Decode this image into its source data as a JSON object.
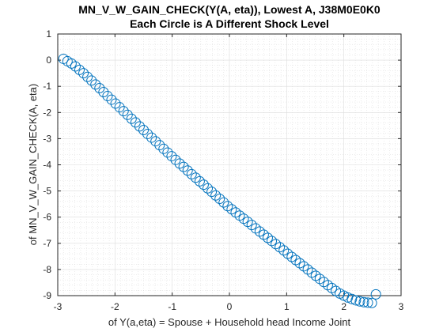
{
  "chart_data": {
    "type": "scatter",
    "title": "MN_V_W_GAIN_CHECK(Y(A, eta)), Lowest A, J38M0E0K0",
    "subtitle": "Each Circle is A Different Shock Level",
    "xlabel": "of Y(a,eta) = Spouse + Household head Income Joint",
    "ylabel": "of MN_V_W_GAIN_CHECK(A, eta)",
    "xlim": [
      -3,
      3
    ],
    "ylim": [
      -9,
      1
    ],
    "xticks": [
      "-3",
      "-2",
      "-1",
      "0",
      "1",
      "2",
      "3"
    ],
    "yticks": [
      "-9",
      "-8",
      "-7",
      "-6",
      "-5",
      "-4",
      "-3",
      "-2",
      "-1",
      "0",
      "1"
    ],
    "grid": true,
    "minor_grid": true,
    "marker": "circle",
    "marker_color": "#0072BD",
    "x": [
      -2.9,
      -2.83,
      -2.76,
      -2.69,
      -2.62,
      -2.55,
      -2.48,
      -2.41,
      -2.34,
      -2.27,
      -2.2,
      -2.13,
      -2.06,
      -1.99,
      -1.92,
      -1.85,
      -1.78,
      -1.71,
      -1.64,
      -1.57,
      -1.5,
      -1.43,
      -1.36,
      -1.29,
      -1.22,
      -1.15,
      -1.08,
      -1.01,
      -0.94,
      -0.87,
      -0.8,
      -0.73,
      -0.66,
      -0.59,
      -0.52,
      -0.45,
      -0.38,
      -0.31,
      -0.24,
      -0.17,
      -0.1,
      -0.03,
      0.04,
      0.11,
      0.18,
      0.25,
      0.32,
      0.39,
      0.46,
      0.53,
      0.6,
      0.67,
      0.74,
      0.81,
      0.88,
      0.95,
      1.02,
      1.09,
      1.16,
      1.23,
      1.3,
      1.37,
      1.44,
      1.51,
      1.58,
      1.65,
      1.72,
      1.79,
      1.86,
      1.93,
      2.0,
      2.07,
      2.14,
      2.21,
      2.28,
      2.35,
      2.42,
      2.49,
      2.56
    ],
    "y": [
      0.05,
      -0.04,
      -0.13,
      -0.24,
      -0.37,
      -0.5,
      -0.64,
      -0.78,
      -0.93,
      -1.07,
      -1.22,
      -1.37,
      -1.51,
      -1.66,
      -1.8,
      -1.95,
      -2.09,
      -2.24,
      -2.38,
      -2.53,
      -2.67,
      -2.82,
      -2.96,
      -3.1,
      -3.25,
      -3.39,
      -3.53,
      -3.67,
      -3.81,
      -3.95,
      -4.08,
      -4.22,
      -4.36,
      -4.49,
      -4.63,
      -4.76,
      -4.9,
      -5.03,
      -5.17,
      -5.3,
      -5.44,
      -5.58,
      -5.7,
      -5.82,
      -5.94,
      -6.06,
      -6.18,
      -6.3,
      -6.43,
      -6.55,
      -6.67,
      -6.79,
      -6.91,
      -7.03,
      -7.15,
      -7.27,
      -7.4,
      -7.52,
      -7.64,
      -7.76,
      -7.88,
      -8.0,
      -8.12,
      -8.24,
      -8.36,
      -8.48,
      -8.6,
      -8.71,
      -8.82,
      -8.92,
      -9.0,
      -9.07,
      -9.13,
      -9.18,
      -9.22,
      -9.25,
      -9.27,
      -9.28,
      -8.95
    ]
  }
}
